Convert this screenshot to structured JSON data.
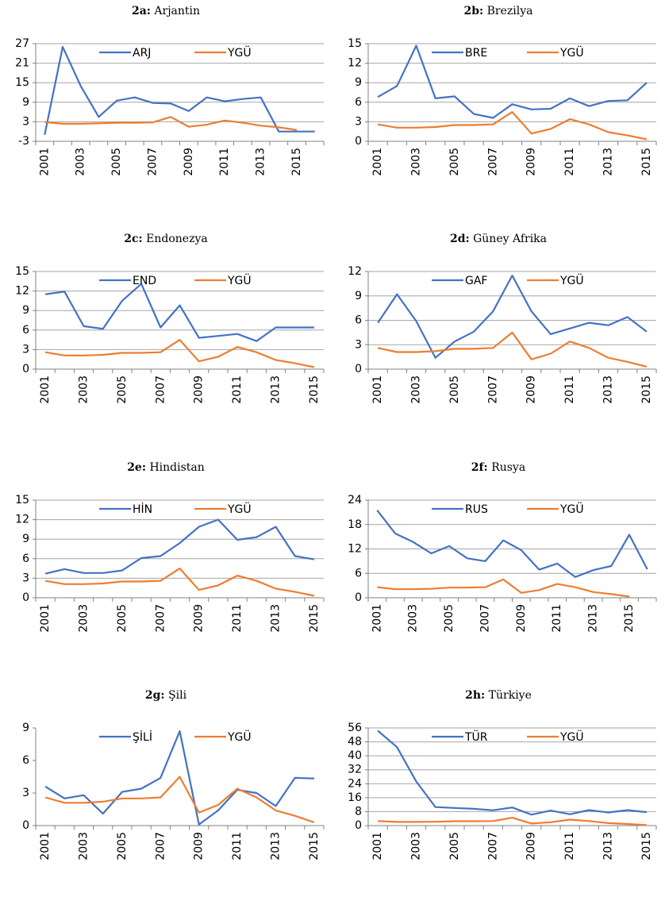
{
  "chart_data": [
    {
      "type": "line",
      "panel": "2a:",
      "title": "Arjantin",
      "categories": [
        "2001",
        null,
        "2003",
        null,
        "2005",
        null,
        "2007",
        null,
        "2009",
        null,
        "2011",
        null,
        "2013",
        null,
        "2015",
        null
      ],
      "series": [
        {
          "name": "ARJ",
          "color": "#4472c4",
          "values": [
            -1,
            26,
            14,
            4.5,
            9.5,
            10.5,
            8.8,
            8.6,
            6.3,
            10.5,
            9.3,
            10,
            10.5,
            0,
            0,
            0
          ]
        },
        {
          "name": "YGÜ",
          "color": "#ed7d31",
          "values": [
            2.9,
            2.4,
            2.4,
            2.5,
            2.7,
            2.7,
            2.8,
            4.5,
            1.5,
            2.1,
            3.4,
            2.7,
            1.8,
            1.3,
            0.5,
            null
          ]
        }
      ],
      "ylim": [
        -3,
        27
      ],
      "yticks": [
        -3,
        3,
        9,
        15,
        21,
        27
      ],
      "grid": true
    },
    {
      "type": "line",
      "panel": "2b:",
      "title": "Brezilya",
      "categories": [
        "2001",
        null,
        "2003",
        null,
        "2005",
        null,
        "2007",
        null,
        "2009",
        null,
        "2011",
        null,
        "2013",
        null,
        "2015"
      ],
      "series": [
        {
          "name": "BRE",
          "color": "#4472c4",
          "values": [
            6.8,
            8.5,
            14.7,
            6.6,
            6.9,
            4.2,
            3.6,
            5.7,
            4.9,
            5.0,
            6.6,
            5.4,
            6.2,
            6.3,
            9.0
          ]
        },
        {
          "name": "YGÜ",
          "color": "#ed7d31",
          "values": [
            2.6,
            2.1,
            2.1,
            2.2,
            2.5,
            2.5,
            2.6,
            4.5,
            1.2,
            1.9,
            3.4,
            2.6,
            1.4,
            0.9,
            0.3
          ]
        }
      ],
      "ylim": [
        0,
        15
      ],
      "yticks": [
        0,
        3,
        6,
        9,
        12,
        15
      ],
      "grid": true
    },
    {
      "type": "line",
      "panel": "2c:",
      "title": "Endonezya",
      "categories": [
        "2001",
        null,
        "2003",
        null,
        "2005",
        null,
        "2007",
        null,
        "2009",
        null,
        "2011",
        null,
        "2013",
        null,
        "2015"
      ],
      "series": [
        {
          "name": "END",
          "color": "#4472c4",
          "values": [
            11.5,
            11.9,
            6.6,
            6.2,
            10.5,
            13.1,
            6.4,
            9.8,
            4.8,
            5.1,
            5.4,
            4.3,
            6.4,
            6.4,
            6.4
          ]
        },
        {
          "name": "YGÜ",
          "color": "#ed7d31",
          "values": [
            2.6,
            2.1,
            2.1,
            2.2,
            2.5,
            2.5,
            2.6,
            4.5,
            1.2,
            1.9,
            3.4,
            2.6,
            1.4,
            0.9,
            0.3
          ]
        }
      ],
      "ylim": [
        0,
        15
      ],
      "yticks": [
        0,
        3,
        6,
        9,
        12,
        15
      ],
      "grid": true
    },
    {
      "type": "line",
      "panel": "2d:",
      "title": "Güney Afrika",
      "categories": [
        "2001",
        null,
        "2003",
        null,
        "2005",
        null,
        "2007",
        null,
        "2009",
        null,
        "2011",
        null,
        "2013",
        null,
        "2015"
      ],
      "series": [
        {
          "name": "GAF",
          "color": "#4472c4",
          "values": [
            5.7,
            9.2,
            5.9,
            1.4,
            3.4,
            4.6,
            7.1,
            11.5,
            7.1,
            4.3,
            5.0,
            5.7,
            5.4,
            6.4,
            4.6
          ]
        },
        {
          "name": "YGÜ",
          "color": "#ed7d31",
          "values": [
            2.6,
            2.1,
            2.1,
            2.2,
            2.5,
            2.5,
            2.6,
            4.5,
            1.2,
            1.9,
            3.4,
            2.6,
            1.4,
            0.9,
            0.3
          ]
        }
      ],
      "ylim": [
        0,
        12
      ],
      "yticks": [
        0,
        3,
        6,
        9,
        12
      ],
      "grid": true
    },
    {
      "type": "line",
      "panel": "2e:",
      "title": "Hindistan",
      "categories": [
        "2001",
        null,
        "2003",
        null,
        "2005",
        null,
        "2007",
        null,
        "2009",
        null,
        "2011",
        null,
        "2013",
        null,
        "2015"
      ],
      "series": [
        {
          "name": "HİN",
          "color": "#4472c4",
          "values": [
            3.7,
            4.4,
            3.8,
            3.8,
            4.2,
            6.1,
            6.4,
            8.4,
            10.9,
            12.0,
            8.9,
            9.3,
            10.9,
            6.4,
            5.9
          ]
        },
        {
          "name": "YGÜ",
          "color": "#ed7d31",
          "values": [
            2.6,
            2.1,
            2.1,
            2.2,
            2.5,
            2.5,
            2.6,
            4.5,
            1.2,
            1.9,
            3.4,
            2.6,
            1.4,
            0.9,
            0.3
          ]
        }
      ],
      "ylim": [
        0,
        15
      ],
      "yticks": [
        0,
        3,
        6,
        9,
        12,
        15
      ],
      "grid": true
    },
    {
      "type": "line",
      "panel": "2f:",
      "title": "Rusya",
      "categories": [
        "2001",
        null,
        "2003",
        null,
        "2005",
        null,
        "2007",
        null,
        "2009",
        null,
        "2011",
        null,
        "2013",
        null,
        "2015",
        null
      ],
      "series": [
        {
          "name": "RUS",
          "color": "#4472c4",
          "values": [
            21.5,
            15.8,
            13.7,
            10.9,
            12.7,
            9.7,
            9.0,
            14.1,
            11.7,
            6.9,
            8.4,
            5.1,
            6.8,
            7.8,
            15.5,
            7.0
          ]
        },
        {
          "name": "YGÜ",
          "color": "#ed7d31",
          "values": [
            2.6,
            2.1,
            2.1,
            2.2,
            2.5,
            2.5,
            2.6,
            4.5,
            1.2,
            1.9,
            3.4,
            2.6,
            1.4,
            0.9,
            0.3,
            null
          ]
        }
      ],
      "ylim": [
        0,
        24
      ],
      "yticks": [
        0,
        6,
        12,
        18,
        24
      ],
      "grid": true
    },
    {
      "type": "line",
      "panel": "2g:",
      "title": "Şili",
      "categories": [
        "2001",
        null,
        "2003",
        null,
        "2005",
        null,
        "2007",
        null,
        "2009",
        null,
        "2011",
        null,
        "2013",
        null,
        "2015"
      ],
      "series": [
        {
          "name": "ŞİLİ",
          "color": "#4472c4",
          "values": [
            3.6,
            2.5,
            2.8,
            1.1,
            3.1,
            3.4,
            4.4,
            8.7,
            0.1,
            1.4,
            3.3,
            3.0,
            1.8,
            4.4,
            4.35
          ]
        },
        {
          "name": "YGÜ",
          "color": "#ed7d31",
          "values": [
            2.6,
            2.1,
            2.1,
            2.2,
            2.5,
            2.5,
            2.6,
            4.5,
            1.2,
            1.9,
            3.4,
            2.6,
            1.4,
            0.9,
            0.3
          ]
        }
      ],
      "ylim": [
        0,
        9
      ],
      "yticks": [
        0,
        3,
        6,
        9
      ],
      "grid": false
    },
    {
      "type": "line",
      "panel": "2h:",
      "title": "Türkiye",
      "categories": [
        "2001",
        null,
        "2003",
        null,
        "2005",
        null,
        "2007",
        null,
        "2009",
        null,
        "2011",
        null,
        "2013",
        null,
        "2015"
      ],
      "series": [
        {
          "name": "TÜR",
          "color": "#4472c4",
          "values": [
            54.4,
            45,
            25.3,
            10.6,
            10.1,
            9.6,
            8.8,
            10.4,
            6.3,
            8.6,
            6.5,
            8.9,
            7.5,
            8.9,
            7.7
          ]
        },
        {
          "name": "YGÜ",
          "color": "#ed7d31",
          "values": [
            2.6,
            2.1,
            2.1,
            2.2,
            2.5,
            2.5,
            2.6,
            4.5,
            1.2,
            1.9,
            3.4,
            2.6,
            1.4,
            0.9,
            0.3
          ]
        }
      ],
      "ylim": [
        0,
        56
      ],
      "yticks": [
        0,
        8,
        16,
        24,
        32,
        40,
        48,
        56
      ],
      "grid": true
    }
  ]
}
